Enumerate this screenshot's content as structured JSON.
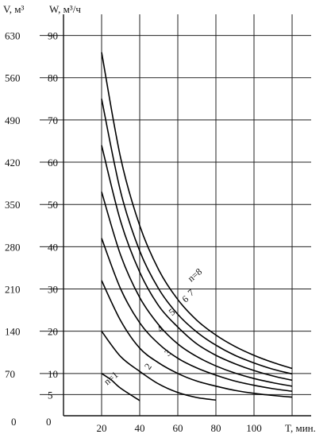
{
  "chart_data": {
    "type": "line",
    "title": "",
    "axis_labels": {
      "left_outer": "V, м³",
      "left_inner": "W, м³/ч",
      "x": "T, мин."
    },
    "x_axis": {
      "ticks": [
        "20",
        "40",
        "60",
        "80",
        "100"
      ],
      "origin_label": "0",
      "range": [
        0,
        130
      ]
    },
    "w_axis": {
      "ticks": [
        "5",
        "10",
        "20",
        "30",
        "40",
        "50",
        "60",
        "70",
        "80",
        "90"
      ],
      "origin_label": "0",
      "range": [
        0,
        95
      ]
    },
    "v_axis": {
      "ticks": [
        "70",
        "140",
        "210",
        "280",
        "350",
        "420",
        "490",
        "560",
        "630"
      ],
      "origin_label": "0"
    },
    "grid": true,
    "series": [
      {
        "name": "n=1",
        "label": "n=1",
        "x": [
          20,
          25,
          30,
          40
        ],
        "y": [
          10,
          8.5,
          6.5,
          3.6
        ]
      },
      {
        "name": "2",
        "label": "2",
        "x": [
          20,
          30,
          40,
          50,
          60,
          70,
          80
        ],
        "y": [
          20,
          14,
          10.5,
          7.5,
          5.5,
          4.3,
          3.7
        ]
      },
      {
        "name": "3",
        "label": "3",
        "x": [
          20,
          30,
          40,
          50,
          60,
          70,
          80,
          90,
          100,
          110,
          120
        ],
        "y": [
          32,
          22.5,
          16,
          12.5,
          10,
          8.2,
          7,
          6,
          5.3,
          4.8,
          4.4
        ]
      },
      {
        "name": "4",
        "label": "4",
        "x": [
          20,
          30,
          40,
          50,
          60,
          70,
          80,
          90,
          100,
          110,
          120
        ],
        "y": [
          42,
          30,
          22,
          17,
          13.6,
          11.3,
          9.6,
          8.2,
          7.2,
          6.4,
          5.8
        ]
      },
      {
        "name": "5",
        "label": "5",
        "x": [
          20,
          30,
          40,
          50,
          60,
          70,
          80,
          90,
          100,
          110,
          120
        ],
        "y": [
          53,
          38,
          28,
          21.5,
          17,
          14,
          11.8,
          10.1,
          8.8,
          7.8,
          7
        ]
      },
      {
        "name": "6",
        "label": "6",
        "x": [
          20,
          30,
          40,
          50,
          60,
          70,
          80,
          90,
          100,
          110,
          120
        ],
        "y": [
          64,
          46,
          34,
          26,
          21,
          17,
          14.3,
          12.3,
          10.7,
          9.4,
          8.4
        ]
      },
      {
        "name": "7",
        "label": "7",
        "x": [
          20,
          30,
          40,
          50,
          60,
          70,
          80,
          90,
          100,
          110,
          120
        ],
        "y": [
          75,
          53,
          39,
          30,
          24,
          19.8,
          16.7,
          14.3,
          12.5,
          11,
          9.9
        ]
      },
      {
        "name": "n=8",
        "label": "n=8",
        "x": [
          20,
          30,
          40,
          50,
          60,
          70,
          80,
          90,
          100,
          110,
          120
        ],
        "y": [
          86,
          61,
          45,
          34.5,
          27.5,
          22.6,
          19.1,
          16.4,
          14.3,
          12.6,
          11.2
        ]
      }
    ]
  }
}
